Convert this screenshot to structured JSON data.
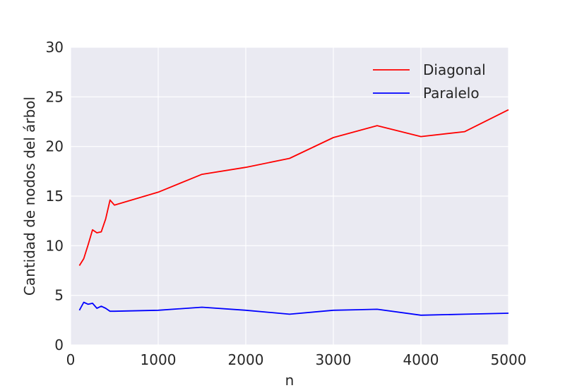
{
  "chart_data": {
    "type": "line",
    "xlabel": "n",
    "ylabel": "Cantidad de nodos del árbol",
    "xlim": [
      0,
      5000
    ],
    "ylim": [
      0,
      30
    ],
    "xticks": [
      "0",
      "1000",
      "2000",
      "3000",
      "4000",
      "5000"
    ],
    "yticks": [
      "0",
      "5",
      "10",
      "15",
      "20",
      "25",
      "30"
    ],
    "grid": true,
    "legend_position": "top-right",
    "series": [
      {
        "name": "Diagonal",
        "color": "#ff0000",
        "x": [
          100,
          150,
          200,
          250,
          300,
          350,
          400,
          450,
          500,
          1000,
          1500,
          2000,
          2500,
          3000,
          3500,
          4000,
          4500,
          5000
        ],
        "y": [
          8.0,
          8.7,
          10.1,
          11.6,
          11.3,
          11.4,
          12.7,
          14.6,
          14.1,
          15.4,
          17.2,
          17.9,
          18.8,
          20.9,
          22.1,
          21.0,
          21.5,
          23.7
        ]
      },
      {
        "name": "Paralelo",
        "color": "#0000ff",
        "x": [
          100,
          150,
          200,
          250,
          300,
          350,
          400,
          450,
          500,
          1000,
          1500,
          2000,
          2500,
          3000,
          3500,
          4000,
          4500,
          5000
        ],
        "y": [
          3.5,
          4.3,
          4.1,
          4.2,
          3.7,
          3.9,
          3.7,
          3.4,
          3.4,
          3.5,
          3.8,
          3.5,
          3.1,
          3.5,
          3.6,
          3.0,
          3.1,
          3.2
        ]
      }
    ]
  }
}
